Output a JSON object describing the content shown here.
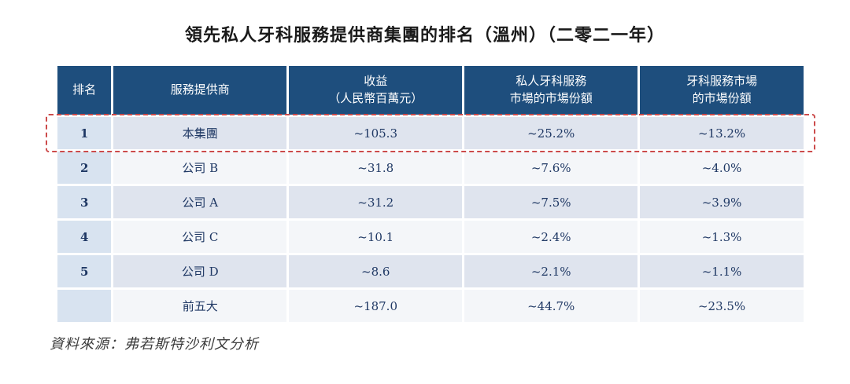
{
  "title": "領先私人牙科服務提供商集團的排名（溫州）（二零二一年）",
  "source_note": "資料來源：弗若斯特沙利文分析",
  "colors": {
    "header_bg": "#1e4e7d",
    "rank_col_bg": "#d8e3f0",
    "row_odd_bg": "#dfe4ee",
    "row_even_bg": "#f4f6f9",
    "text_navy": "#1f3864",
    "highlight_border": "#cc4b4b"
  },
  "table": {
    "columns": [
      "排名",
      "服務提供商",
      "收益\n（人民幣百萬元）",
      "私人牙科服務\n市場的市場份額",
      "牙科服務市場\n的市場份額"
    ],
    "rows": [
      {
        "rank": "1",
        "provider": "本集團",
        "revenue": "~105.3",
        "private_share": "~25.2%",
        "dental_share": "~13.2%",
        "highlighted": true
      },
      {
        "rank": "2",
        "provider": "公司 B",
        "revenue": "~31.8",
        "private_share": "~7.6%",
        "dental_share": "~4.0%",
        "highlighted": false
      },
      {
        "rank": "3",
        "provider": "公司 A",
        "revenue": "~31.2",
        "private_share": "~7.5%",
        "dental_share": "~3.9%",
        "highlighted": false
      },
      {
        "rank": "4",
        "provider": "公司 C",
        "revenue": "~10.1",
        "private_share": "~2.4%",
        "dental_share": "~1.3%",
        "highlighted": false
      },
      {
        "rank": "5",
        "provider": "公司 D",
        "revenue": "~8.6",
        "private_share": "~2.1%",
        "dental_share": "~1.1%",
        "highlighted": false
      },
      {
        "rank": "",
        "provider": "前五大",
        "revenue": "~187.0",
        "private_share": "~44.7%",
        "dental_share": "~23.5%",
        "highlighted": false
      }
    ]
  }
}
